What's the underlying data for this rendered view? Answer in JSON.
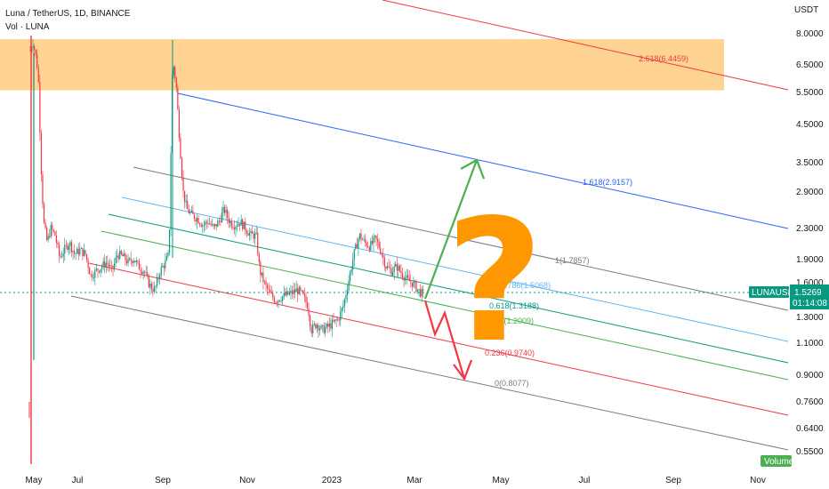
{
  "header": {
    "symbol_line": "Luna / TetherUS, 1D, BINANCE",
    "volume_line": "Vol · LUNA"
  },
  "price_axis": {
    "unit_label": "USDT",
    "ticks": [
      "8.0000",
      "6.5000",
      "5.5000",
      "4.5000",
      "3.5000",
      "2.9000",
      "2.3000",
      "1.9000",
      "1.6000",
      "1.3000",
      "1.1000",
      "0.9000",
      "0.7600",
      "0.6400",
      "0.5500"
    ]
  },
  "last_price": {
    "symbol": "LUNAUSDT",
    "price": "1.5269",
    "countdown": "01:14:08",
    "color": "#089981"
  },
  "volume_badge": "Volume",
  "time_axis": {
    "labels": [
      "May",
      "Jul",
      "Sep",
      "Nov",
      "2023",
      "Mar",
      "May",
      "Jul",
      "Sep",
      "Nov"
    ]
  },
  "chart_data": {
    "type": "candlestick",
    "title": "Luna / TetherUS, 1D, BINANCE",
    "y_scale": "log",
    "ylim": [
      0.52,
      9.0
    ],
    "x_range": [
      "2022-05",
      "2023-11"
    ],
    "resistance_zone": {
      "price_low": 5.6,
      "price_high": 8.0,
      "color": "#ffcc80"
    },
    "fib_channel_levels": [
      {
        "label": "0(0.8077)",
        "level": 0,
        "price": 0.8077,
        "color": "#787b86"
      },
      {
        "label": "0.236(0.9740)",
        "level": 0.236,
        "price": 0.974,
        "color": "#f23645"
      },
      {
        "label": "0.5(1.2009)",
        "level": 0.5,
        "price": 1.2009,
        "color": "#4caf50"
      },
      {
        "label": "0.618(1.3188)",
        "level": 0.618,
        "price": 1.3188,
        "color": "#089981"
      },
      {
        "label": "0.786(1.5068)",
        "level": 0.786,
        "price": 1.5068,
        "color": "#64b5f6"
      },
      {
        "label": "1(1.7857)",
        "level": 1,
        "price": 1.7857,
        "color": "#787b86"
      },
      {
        "label": "1.618(2.9157)",
        "level": 1.618,
        "price": 2.9157,
        "color": "#2962ff"
      },
      {
        "label": "2.618(6.4459)",
        "level": 2.618,
        "price": 6.4459,
        "color": "#f23645"
      }
    ],
    "scenarios": [
      {
        "direction": "up",
        "target_price": 3.6,
        "color": "#4caf50"
      },
      {
        "direction": "down",
        "target_price": 0.83,
        "color": "#f23645"
      }
    ],
    "annotation_symbol": "?",
    "annotation_color": "#ff9800",
    "candle_colors": {
      "up": "#089981",
      "down": "#f23645"
    }
  }
}
